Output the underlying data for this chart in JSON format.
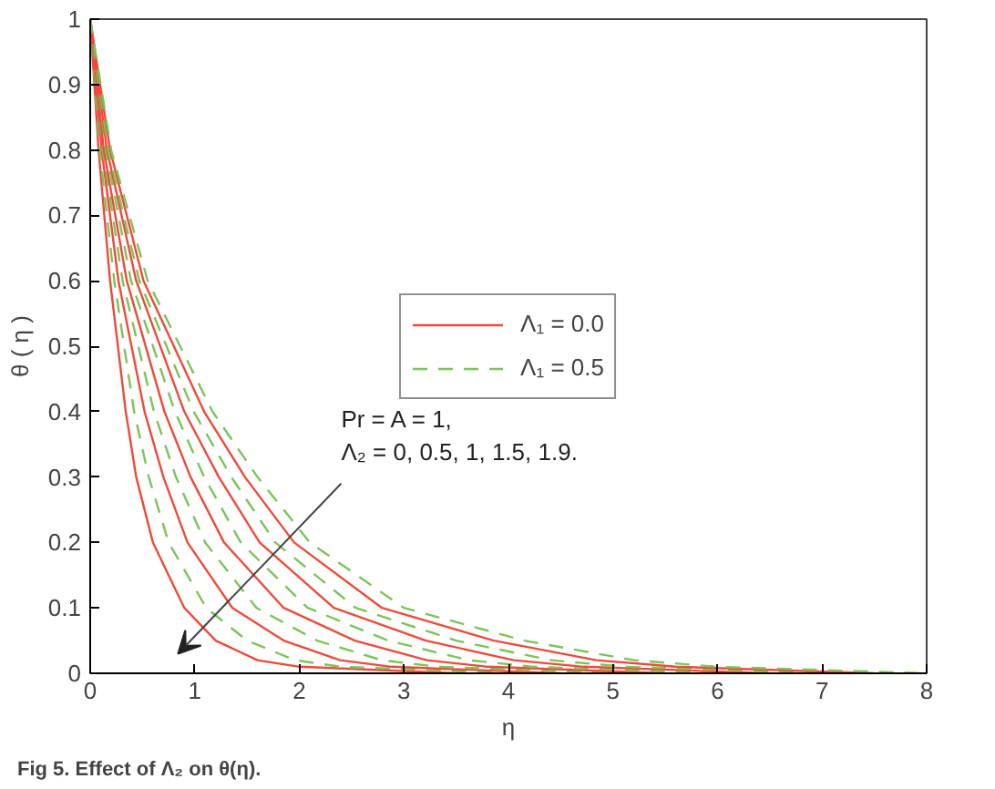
{
  "chart_data": {
    "type": "line",
    "title": "Fig 5. Effect of Λ₂ on θ(η).",
    "xlabel": "η",
    "ylabel": "θ ( η )",
    "xlim": [
      0,
      8
    ],
    "ylim": [
      0,
      1
    ],
    "xticks": [
      0,
      1,
      2,
      3,
      4,
      5,
      6,
      7,
      8
    ],
    "yticks": [
      0,
      0.1,
      0.2,
      0.3,
      0.4,
      0.5,
      0.6,
      0.7,
      0.8,
      0.9,
      1
    ],
    "grid": false,
    "legend": "center",
    "marker": "none",
    "annotations": [
      "Pr = A = 1,\nΛ₂ = 0, 0.5, 1, 1.5, 1.9."
    ],
    "series": [
      {
        "name": "Λ₁ = 0.0",
        "color": "#ee4a3a",
        "line_style": "solid",
        "x": [
          0,
          0.08,
          0.19,
          0.34,
          0.44,
          0.6,
          0.9,
          1.2,
          1.6,
          2.0,
          3.5
        ],
        "values": [
          1,
          0.8,
          0.6,
          0.4,
          0.3,
          0.2,
          0.1,
          0.05,
          0.02,
          0.01,
          0
        ]
      },
      {
        "name": "Λ₁ = 0.5",
        "color": "#7cc35a",
        "line_style": "dashed",
        "x": [
          0,
          0.09,
          0.23,
          0.42,
          0.56,
          0.75,
          1.11,
          1.5,
          1.96,
          2.4,
          4
        ],
        "values": [
          1,
          0.8,
          0.6,
          0.4,
          0.3,
          0.2,
          0.1,
          0.05,
          0.02,
          0.01,
          0
        ]
      },
      {
        "color": "#ee4a3a",
        "line_style": "solid",
        "x": [
          0,
          0.11,
          0.27,
          0.52,
          0.7,
          0.93,
          1.36,
          1.85,
          2.39,
          2.88,
          4.5
        ],
        "values": [
          1,
          0.8,
          0.6,
          0.4,
          0.3,
          0.2,
          0.1,
          0.05,
          0.02,
          0.01,
          0
        ]
      },
      {
        "color": "#7cc35a",
        "line_style": "dashed",
        "x": [
          0,
          0.12,
          0.31,
          0.61,
          0.82,
          1.1,
          1.59,
          2.17,
          2.79,
          3.32,
          5
        ],
        "values": [
          1,
          0.8,
          0.6,
          0.4,
          0.3,
          0.2,
          0.1,
          0.05,
          0.02,
          0.01,
          0
        ]
      },
      {
        "color": "#ee4a3a",
        "line_style": "solid",
        "x": [
          0,
          0.13,
          0.35,
          0.71,
          0.96,
          1.28,
          1.85,
          2.53,
          3.22,
          3.8,
          5.5
        ],
        "values": [
          1,
          0.8,
          0.6,
          0.4,
          0.3,
          0.2,
          0.1,
          0.05,
          0.02,
          0.01,
          0
        ]
      },
      {
        "color": "#7cc35a",
        "line_style": "dashed",
        "x": [
          0,
          0.15,
          0.39,
          0.81,
          1.09,
          1.44,
          2.08,
          2.85,
          3.62,
          4.24,
          6
        ],
        "values": [
          1,
          0.8,
          0.6,
          0.4,
          0.3,
          0.2,
          0.1,
          0.05,
          0.02,
          0.01,
          0
        ]
      },
      {
        "color": "#ee4a3a",
        "line_style": "solid",
        "x": [
          0,
          0.16,
          0.44,
          0.9,
          1.23,
          1.62,
          2.33,
          3.21,
          4.05,
          4.72,
          6.5
        ],
        "values": [
          1,
          0.8,
          0.6,
          0.4,
          0.3,
          0.2,
          0.1,
          0.05,
          0.02,
          0.01,
          0
        ]
      },
      {
        "color": "#7cc35a",
        "line_style": "dashed",
        "x": [
          0,
          0.17,
          0.47,
          0.99,
          1.35,
          1.77,
          2.54,
          3.5,
          4.41,
          5.12,
          7
        ],
        "values": [
          1,
          0.8,
          0.6,
          0.4,
          0.3,
          0.2,
          0.1,
          0.05,
          0.02,
          0.01,
          0
        ]
      },
      {
        "color": "#ee4a3a",
        "line_style": "solid",
        "x": [
          0,
          0.19,
          0.51,
          1.09,
          1.48,
          1.95,
          2.79,
          3.86,
          4.84,
          5.6,
          7.5
        ],
        "values": [
          1,
          0.8,
          0.6,
          0.4,
          0.3,
          0.2,
          0.1,
          0.05,
          0.02,
          0.01,
          0
        ]
      },
      {
        "color": "#7cc35a",
        "line_style": "dashed",
        "x": [
          0,
          0.2,
          0.55,
          1.17,
          1.6,
          2.1,
          3.0,
          4.15,
          5.2,
          6.0,
          8
        ],
        "values": [
          1,
          0.8,
          0.6,
          0.4,
          0.3,
          0.2,
          0.1,
          0.05,
          0.02,
          0.01,
          0
        ]
      }
    ]
  }
}
